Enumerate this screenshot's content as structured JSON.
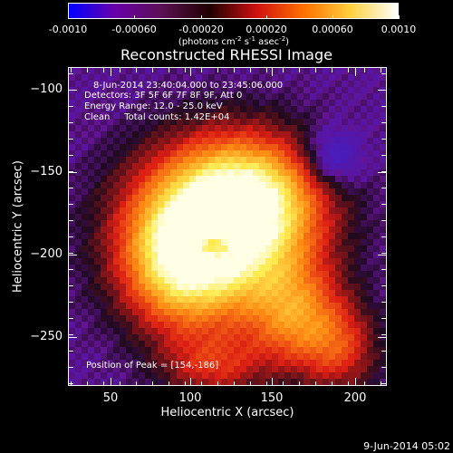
{
  "colorbar": {
    "ticks": [
      "-0.0010",
      "-0.00060",
      "-0.00020",
      "0.00020",
      "0.00060",
      "0.0010"
    ],
    "units": "(photons cm",
    "units_exp1": "-2",
    "units_mid": " s",
    "units_exp2": "-1",
    "units_mid2": " asec",
    "units_exp3": "-2",
    "units_end": ")",
    "colors": [
      "#0000ff",
      "#6a00a8",
      "#5a1050",
      "#200000",
      "#d01010",
      "#ff7000",
      "#ffd040",
      "#ffffff"
    ]
  },
  "title": "Reconstructed RHESSI Image",
  "info": {
    "time_range": "8-Jun-2014 23:40:04.000 to 23:45:06.000",
    "detectors": "Detectors: 3F 5F 6F 7F 8F 9F, Att 0",
    "energy": "Energy Range: 12.0 - 25.0 keV",
    "clean": "Clean     Total counts: 1.42E+04",
    "peak": "Position of Peak = [154,-186]"
  },
  "axes": {
    "xlabel": "Heliocentric X (arcsec)",
    "ylabel": "Heliocentric Y (arcsec)",
    "xticks": [
      "50",
      "100",
      "150",
      "200"
    ],
    "yticks": [
      "−100",
      "−150",
      "−200",
      "−250"
    ]
  },
  "timestamp": "9-Jun-2014 05:02"
}
